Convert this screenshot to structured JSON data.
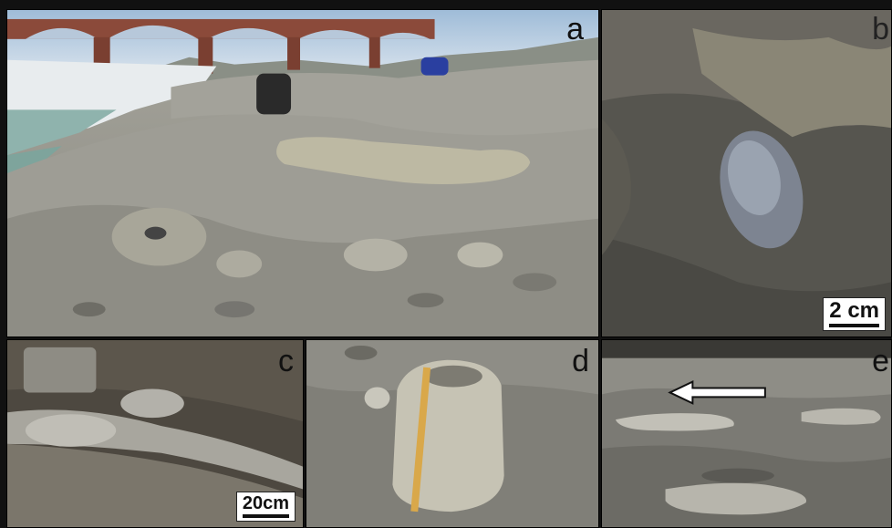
{
  "panels": {
    "a": {
      "label": "a"
    },
    "b": {
      "label": "b",
      "scale_label": "2 cm"
    },
    "c": {
      "label": "c",
      "scale_label": "20cm"
    },
    "d": {
      "label": "d"
    },
    "e": {
      "label": "e"
    }
  }
}
